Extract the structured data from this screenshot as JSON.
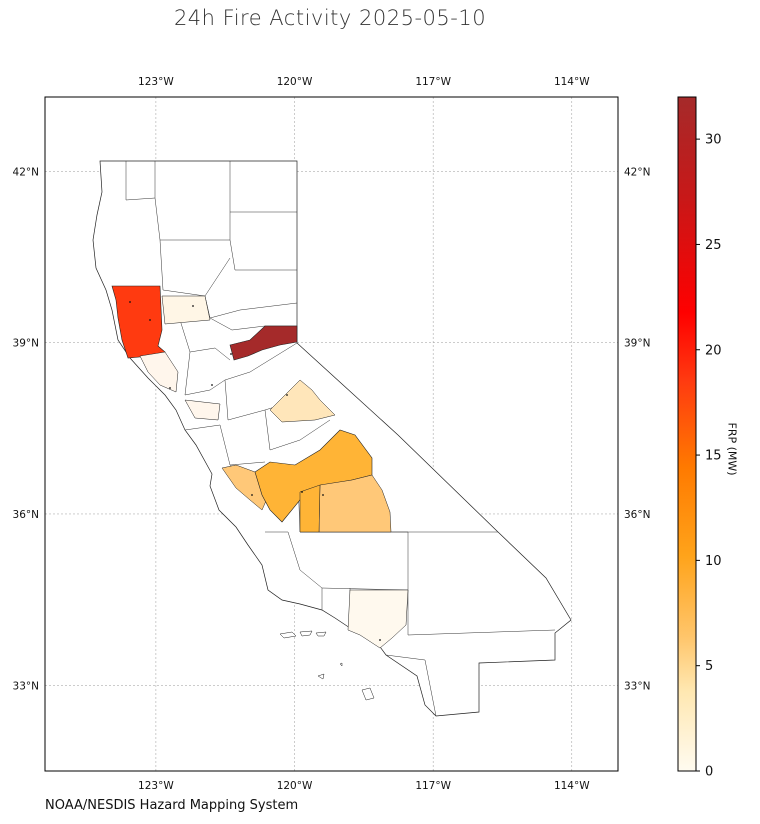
{
  "title": "24h Fire Activity 2025-05-10",
  "source": "NOAA/NESDIS Hazard Mapping System",
  "map": {
    "lon_range": [
      -125.4,
      -113.0
    ],
    "lat_range": [
      31.5,
      43.3
    ],
    "lon_ticks": [
      {
        "value": -123,
        "label": "123°W"
      },
      {
        "value": -120,
        "label": "120°W"
      },
      {
        "value": -117,
        "label": "117°W"
      },
      {
        "value": -114,
        "label": "114°W"
      }
    ],
    "lat_ticks": [
      {
        "value": 42,
        "label": "42°N"
      },
      {
        "value": 39,
        "label": "39°N"
      },
      {
        "value": 36,
        "label": "36°N"
      },
      {
        "value": 33,
        "label": "33°N"
      }
    ],
    "grid": true,
    "region": "California counties"
  },
  "colorbar": {
    "label": "FRP (MW)",
    "range": [
      0,
      32
    ],
    "ticks": [
      {
        "value": 0,
        "label": "0"
      },
      {
        "value": 5,
        "label": "5"
      },
      {
        "value": 10,
        "label": "10"
      },
      {
        "value": 15,
        "label": "15"
      },
      {
        "value": 20,
        "label": "20"
      },
      {
        "value": 25,
        "label": "25"
      },
      {
        "value": 30,
        "label": "30"
      }
    ],
    "colormap": [
      "#fffbf0",
      "#ffe7b0",
      "#ffc56a",
      "#ffa31a",
      "#ff7a00",
      "#ff3a10",
      "#ff0000",
      "#c81818",
      "#a52a2a"
    ]
  },
  "chart_data": {
    "type": "choropleth",
    "colored_counties": [
      {
        "id": "mendocino",
        "frp": 19
      },
      {
        "id": "placer",
        "frp": 32
      },
      {
        "id": "tulare",
        "frp": 9
      },
      {
        "id": "fresno",
        "frp": 9.5
      },
      {
        "id": "inyo",
        "frp": 6
      },
      {
        "id": "monterey",
        "frp": 5
      },
      {
        "id": "mono",
        "frp": 3
      },
      {
        "id": "glenn",
        "frp": 1
      },
      {
        "id": "sonoma",
        "frp": 1
      },
      {
        "id": "sanmateo",
        "frp": 0.5
      },
      {
        "id": "losangeles",
        "frp": 0.8
      }
    ]
  }
}
